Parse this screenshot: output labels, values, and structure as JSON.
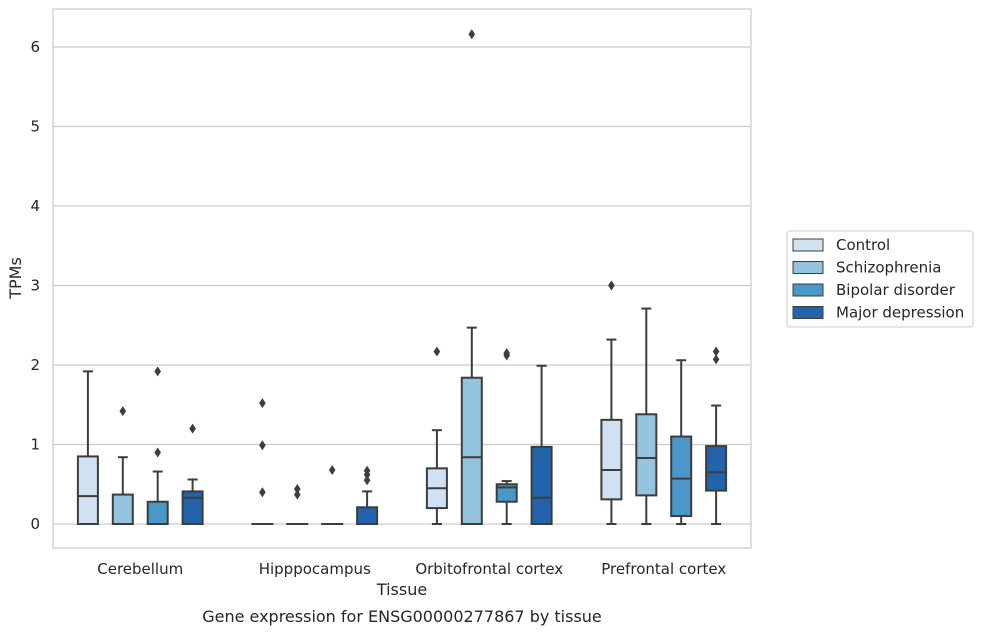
{
  "caption": "Gene expression for ENSG00000277867 by tissue",
  "chart_data": {
    "type": "box",
    "xlabel": "Tissue",
    "ylabel": "TPMs",
    "ylim": [
      -0.3,
      6.5
    ],
    "yticks": [
      0,
      1,
      2,
      3,
      4,
      5,
      6
    ],
    "grid": "horizontal",
    "legend_position": "right",
    "categories": [
      "Cerebellum",
      "Hipppocampus",
      "Orbitofrontal cortex",
      "Prefrontal cortex"
    ],
    "series": [
      {
        "name": "Control",
        "color": "#d0e1f2",
        "boxes": [
          {
            "whisker_low": 0,
            "q1": 0,
            "median": 0.35,
            "q3": 0.85,
            "whisker_high": 1.92,
            "outliers": []
          },
          {
            "whisker_low": 0,
            "q1": 0,
            "median": 0,
            "q3": 0,
            "whisker_high": 0,
            "outliers": [
              1.52,
              0.99,
              0.4
            ]
          },
          {
            "whisker_low": 0,
            "q1": 0.2,
            "median": 0.45,
            "q3": 0.7,
            "whisker_high": 1.18,
            "outliers": [
              2.17
            ]
          },
          {
            "whisker_low": 0,
            "q1": 0.31,
            "median": 0.68,
            "q3": 1.31,
            "whisker_high": 2.32,
            "outliers": [
              3.0
            ]
          }
        ]
      },
      {
        "name": "Schizophrenia",
        "color": "#94c4df",
        "boxes": [
          {
            "whisker_low": 0,
            "q1": 0,
            "median": 0,
            "q3": 0.37,
            "whisker_high": 0.84,
            "outliers": [
              1.42
            ]
          },
          {
            "whisker_low": 0,
            "q1": 0,
            "median": 0,
            "q3": 0,
            "whisker_high": 0,
            "outliers": [
              0.44,
              0.37
            ]
          },
          {
            "whisker_low": 0,
            "q1": 0,
            "median": 0.84,
            "q3": 1.84,
            "whisker_high": 2.47,
            "outliers": [
              6.16
            ]
          },
          {
            "whisker_low": 0,
            "q1": 0.36,
            "median": 0.83,
            "q3": 1.38,
            "whisker_high": 2.71,
            "outliers": []
          }
        ]
      },
      {
        "name": "Bipolar disorder",
        "color": "#4a98c9",
        "boxes": [
          {
            "whisker_low": 0,
            "q1": 0,
            "median": 0,
            "q3": 0.28,
            "whisker_high": 0.66,
            "outliers": [
              1.92,
              0.9
            ]
          },
          {
            "whisker_low": 0,
            "q1": 0,
            "median": 0,
            "q3": 0,
            "whisker_high": 0,
            "outliers": [
              0.68
            ]
          },
          {
            "whisker_low": 0,
            "q1": 0.28,
            "median": 0.46,
            "q3": 0.5,
            "whisker_high": 0.54,
            "outliers": [
              2.15,
              2.12
            ]
          },
          {
            "whisker_low": 0,
            "q1": 0.1,
            "median": 0.57,
            "q3": 1.1,
            "whisker_high": 2.06,
            "outliers": []
          }
        ]
      },
      {
        "name": "Major depression",
        "color": "#2164ab",
        "boxes": [
          {
            "whisker_low": 0,
            "q1": 0,
            "median": 0.33,
            "q3": 0.41,
            "whisker_high": 0.56,
            "outliers": [
              1.2
            ]
          },
          {
            "whisker_low": 0,
            "q1": 0,
            "median": 0,
            "q3": 0.21,
            "whisker_high": 0.41,
            "outliers": [
              0.67,
              0.62,
              0.55
            ]
          },
          {
            "whisker_low": 0,
            "q1": 0,
            "median": 0.33,
            "q3": 0.97,
            "whisker_high": 1.99,
            "outliers": []
          },
          {
            "whisker_low": 0,
            "q1": 0.42,
            "median": 0.65,
            "q3": 0.98,
            "whisker_high": 1.49,
            "outliers": [
              2.17,
              2.07
            ]
          }
        ]
      }
    ]
  }
}
